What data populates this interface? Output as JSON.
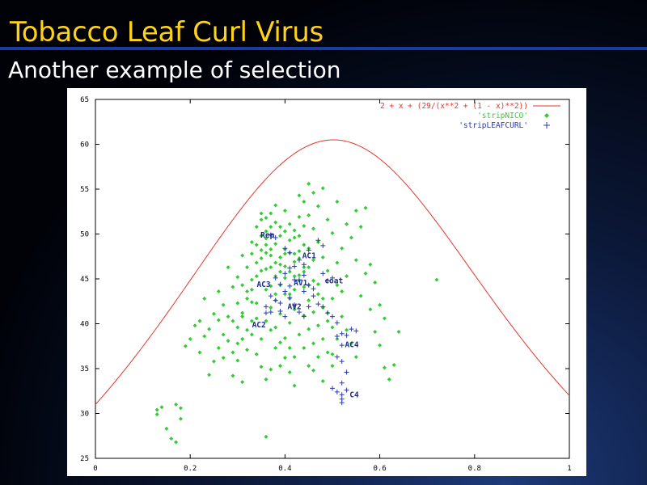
{
  "slide": {
    "title": "Tobacco Leaf Curl Virus",
    "subtitle": "Another example of selection"
  },
  "colors": {
    "title": "#ffd21a",
    "curve": "#e0382a",
    "nico": "#33cc33",
    "leafcurl": "#2a3aa8",
    "labels": "#1c2a8a"
  },
  "chart_data": {
    "type": "scatter",
    "xlim": [
      0,
      1
    ],
    "ylim": [
      25,
      65
    ],
    "xticks": [
      "0",
      "0.2",
      "0.4",
      "0.6",
      "0.8",
      "1"
    ],
    "yticks": [
      "25",
      "30",
      "35",
      "40",
      "45",
      "50",
      "55",
      "60",
      "65"
    ],
    "legend_position": "top-right",
    "grid": false,
    "curve": {
      "name": "2 + x + (29/(x**2 + (1 - x)**2))",
      "marker": "line"
    },
    "series": [
      {
        "name": "'stripNICO'",
        "marker": "diamond",
        "points": [
          [
            0.13,
            30.4
          ],
          [
            0.14,
            30.7
          ],
          [
            0.13,
            29.9
          ],
          [
            0.17,
            31.0
          ],
          [
            0.18,
            30.6
          ],
          [
            0.15,
            28.3
          ],
          [
            0.16,
            27.2
          ],
          [
            0.18,
            29.4
          ],
          [
            0.17,
            26.8
          ],
          [
            0.36,
            27.4
          ],
          [
            0.19,
            37.5
          ],
          [
            0.22,
            36.8
          ],
          [
            0.21,
            39.8
          ],
          [
            0.23,
            38.6
          ],
          [
            0.25,
            41.1
          ],
          [
            0.24,
            39.4
          ],
          [
            0.26,
            43.6
          ],
          [
            0.27,
            42.1
          ],
          [
            0.26,
            40.4
          ],
          [
            0.28,
            38.1
          ],
          [
            0.27,
            36.2
          ],
          [
            0.29,
            34.2
          ],
          [
            0.3,
            35.9
          ],
          [
            0.31,
            33.5
          ],
          [
            0.29,
            44.1
          ],
          [
            0.28,
            46.3
          ],
          [
            0.3,
            45.2
          ],
          [
            0.31,
            47.6
          ],
          [
            0.32,
            43.6
          ],
          [
            0.33,
            42.4
          ],
          [
            0.31,
            41.2
          ],
          [
            0.3,
            39.6
          ],
          [
            0.33,
            38.8
          ],
          [
            0.32,
            37.1
          ],
          [
            0.34,
            36.6
          ],
          [
            0.35,
            35.2
          ],
          [
            0.36,
            33.8
          ],
          [
            0.37,
            34.9
          ],
          [
            0.34,
            40.6
          ],
          [
            0.33,
            44.9
          ],
          [
            0.34,
            46.8
          ],
          [
            0.35,
            48.2
          ],
          [
            0.33,
            49.1
          ],
          [
            0.34,
            50.8
          ],
          [
            0.35,
            51.6
          ],
          [
            0.36,
            49.5
          ],
          [
            0.37,
            47.6
          ],
          [
            0.36,
            46.1
          ],
          [
            0.37,
            44.2
          ],
          [
            0.38,
            42.6
          ],
          [
            0.39,
            41.1
          ],
          [
            0.38,
            39.6
          ],
          [
            0.39,
            37.9
          ],
          [
            0.4,
            36.2
          ],
          [
            0.41,
            34.6
          ],
          [
            0.42,
            33.1
          ],
          [
            0.4,
            38.4
          ],
          [
            0.41,
            40.1
          ],
          [
            0.42,
            41.6
          ],
          [
            0.41,
            43.3
          ],
          [
            0.4,
            45.1
          ],
          [
            0.39,
            46.6
          ],
          [
            0.4,
            48.3
          ],
          [
            0.39,
            49.8
          ],
          [
            0.38,
            51.3
          ],
          [
            0.37,
            52.3
          ],
          [
            0.38,
            53.2
          ],
          [
            0.4,
            52.6
          ],
          [
            0.41,
            51.1
          ],
          [
            0.42,
            49.6
          ],
          [
            0.43,
            48.1
          ],
          [
            0.42,
            46.9
          ],
          [
            0.43,
            45.4
          ],
          [
            0.44,
            44.1
          ],
          [
            0.45,
            42.6
          ],
          [
            0.44,
            40.9
          ],
          [
            0.45,
            39.4
          ],
          [
            0.46,
            37.8
          ],
          [
            0.47,
            36.3
          ],
          [
            0.46,
            34.8
          ],
          [
            0.48,
            33.6
          ],
          [
            0.44,
            53.6
          ],
          [
            0.45,
            52.1
          ],
          [
            0.43,
            54.3
          ],
          [
            0.46,
            50.6
          ],
          [
            0.47,
            49.1
          ],
          [
            0.48,
            47.4
          ],
          [
            0.49,
            45.9
          ],
          [
            0.47,
            44.4
          ],
          [
            0.48,
            42.8
          ],
          [
            0.49,
            41.2
          ],
          [
            0.5,
            39.6
          ],
          [
            0.51,
            38.3
          ],
          [
            0.5,
            36.6
          ],
          [
            0.52,
            43.6
          ],
          [
            0.53,
            45.3
          ],
          [
            0.51,
            46.8
          ],
          [
            0.52,
            48.4
          ],
          [
            0.5,
            50.1
          ],
          [
            0.49,
            51.6
          ],
          [
            0.47,
            53.1
          ],
          [
            0.46,
            54.6
          ],
          [
            0.48,
            55.1
          ],
          [
            0.45,
            55.6
          ],
          [
            0.51,
            53.6
          ],
          [
            0.53,
            51.1
          ],
          [
            0.54,
            49.6
          ],
          [
            0.55,
            52.6
          ],
          [
            0.56,
            50.8
          ],
          [
            0.55,
            47.1
          ],
          [
            0.57,
            45.6
          ],
          [
            0.56,
            43.1
          ],
          [
            0.58,
            41.6
          ],
          [
            0.59,
            39.1
          ],
          [
            0.6,
            37.6
          ],
          [
            0.61,
            35.1
          ],
          [
            0.62,
            33.8
          ],
          [
            0.58,
            46.6
          ],
          [
            0.59,
            44.6
          ],
          [
            0.6,
            42.1
          ],
          [
            0.61,
            40.6
          ],
          [
            0.63,
            35.4
          ],
          [
            0.64,
            39.1
          ],
          [
            0.72,
            44.9
          ],
          [
            0.57,
            52.9
          ],
          [
            0.35,
            45.9
          ],
          [
            0.36,
            47.9
          ],
          [
            0.37,
            49.9
          ],
          [
            0.38,
            48.9
          ],
          [
            0.39,
            47.4
          ],
          [
            0.4,
            46.4
          ],
          [
            0.41,
            47.9
          ],
          [
            0.42,
            50.4
          ],
          [
            0.43,
            51.9
          ],
          [
            0.44,
            50.9
          ],
          [
            0.45,
            48.4
          ],
          [
            0.46,
            47.1
          ],
          [
            0.44,
            46.3
          ],
          [
            0.43,
            44.8
          ],
          [
            0.42,
            43.8
          ],
          [
            0.41,
            42.8
          ],
          [
            0.39,
            44.3
          ],
          [
            0.38,
            45.3
          ],
          [
            0.37,
            46.3
          ],
          [
            0.36,
            50.3
          ],
          [
            0.35,
            49.8
          ],
          [
            0.34,
            48.8
          ],
          [
            0.33,
            47.8
          ],
          [
            0.32,
            46.3
          ],
          [
            0.31,
            44.3
          ],
          [
            0.3,
            42.3
          ],
          [
            0.29,
            40.3
          ],
          [
            0.28,
            40.8
          ],
          [
            0.27,
            38.8
          ],
          [
            0.26,
            37.3
          ],
          [
            0.25,
            35.8
          ],
          [
            0.24,
            34.3
          ],
          [
            0.23,
            42.8
          ],
          [
            0.22,
            40.3
          ],
          [
            0.2,
            38.3
          ],
          [
            0.35,
            38.3
          ],
          [
            0.36,
            40.3
          ],
          [
            0.37,
            41.8
          ],
          [
            0.38,
            43.3
          ],
          [
            0.39,
            45.8
          ],
          [
            0.4,
            47.8
          ],
          [
            0.41,
            49.3
          ],
          [
            0.42,
            45.3
          ],
          [
            0.43,
            47.3
          ],
          [
            0.44,
            48.8
          ],
          [
            0.45,
            46.3
          ],
          [
            0.46,
            44.8
          ],
          [
            0.47,
            43.3
          ],
          [
            0.48,
            41.8
          ],
          [
            0.49,
            40.3
          ],
          [
            0.5,
            42.8
          ],
          [
            0.51,
            44.3
          ],
          [
            0.52,
            40.8
          ],
          [
            0.53,
            39.3
          ],
          [
            0.54,
            37.8
          ],
          [
            0.55,
            36.3
          ],
          [
            0.36,
            43.8
          ],
          [
            0.37,
            39.3
          ],
          [
            0.38,
            37.3
          ],
          [
            0.39,
            35.3
          ],
          [
            0.4,
            43.3
          ],
          [
            0.41,
            37.3
          ],
          [
            0.42,
            36.3
          ],
          [
            0.43,
            38.8
          ],
          [
            0.44,
            37.3
          ],
          [
            0.45,
            35.3
          ],
          [
            0.46,
            41.3
          ],
          [
            0.47,
            39.8
          ],
          [
            0.48,
            38.3
          ],
          [
            0.49,
            36.8
          ],
          [
            0.5,
            35.3
          ],
          [
            0.34,
            42.3
          ],
          [
            0.33,
            40.3
          ],
          [
            0.32,
            39.3
          ],
          [
            0.31,
            38.3
          ],
          [
            0.35,
            52.3
          ],
          [
            0.36,
            51.8
          ],
          [
            0.37,
            50.8
          ],
          [
            0.39,
            50.8
          ],
          [
            0.4,
            50.3
          ],
          [
            0.41,
            45.8
          ],
          [
            0.42,
            47.8
          ],
          [
            0.43,
            49.8
          ],
          [
            0.44,
            45.8
          ],
          [
            0.45,
            44.3
          ],
          [
            0.38,
            46.8
          ],
          [
            0.37,
            48.3
          ],
          [
            0.36,
            48.8
          ],
          [
            0.35,
            47.3
          ],
          [
            0.34,
            45.3
          ],
          [
            0.33,
            43.8
          ],
          [
            0.32,
            42.8
          ],
          [
            0.31,
            40.8
          ],
          [
            0.3,
            37.8
          ],
          [
            0.29,
            36.8
          ]
        ]
      },
      {
        "name": "'stripLEAFCURL'",
        "marker": "plus",
        "points": [
          [
            0.37,
            49.9
          ],
          [
            0.38,
            49.6
          ],
          [
            0.4,
            48.4
          ],
          [
            0.41,
            47.9
          ],
          [
            0.43,
            47.1
          ],
          [
            0.42,
            46.4
          ],
          [
            0.44,
            46.6
          ],
          [
            0.45,
            48.2
          ],
          [
            0.47,
            49.3
          ],
          [
            0.48,
            48.7
          ],
          [
            0.44,
            45.4
          ],
          [
            0.43,
            44.9
          ],
          [
            0.45,
            44.3
          ],
          [
            0.46,
            43.9
          ],
          [
            0.48,
            45.6
          ],
          [
            0.49,
            44.8
          ],
          [
            0.5,
            45.1
          ],
          [
            0.38,
            45.1
          ],
          [
            0.39,
            44.4
          ],
          [
            0.4,
            43.6
          ],
          [
            0.41,
            42.9
          ],
          [
            0.39,
            42.3
          ],
          [
            0.38,
            42.6
          ],
          [
            0.37,
            43.1
          ],
          [
            0.36,
            41.9
          ],
          [
            0.37,
            41.3
          ],
          [
            0.39,
            41.4
          ],
          [
            0.4,
            40.8
          ],
          [
            0.36,
            41.2
          ],
          [
            0.42,
            42.1
          ],
          [
            0.43,
            41.3
          ],
          [
            0.44,
            40.8
          ],
          [
            0.45,
            41.9
          ],
          [
            0.46,
            43.1
          ],
          [
            0.47,
            42.2
          ],
          [
            0.48,
            41.9
          ],
          [
            0.49,
            41.2
          ],
          [
            0.5,
            40.8
          ],
          [
            0.51,
            40.1
          ],
          [
            0.51,
            38.6
          ],
          [
            0.52,
            38.9
          ],
          [
            0.53,
            38.7
          ],
          [
            0.54,
            39.4
          ],
          [
            0.55,
            39.2
          ],
          [
            0.52,
            37.6
          ],
          [
            0.51,
            36.3
          ],
          [
            0.52,
            35.8
          ],
          [
            0.53,
            34.6
          ],
          [
            0.52,
            33.4
          ],
          [
            0.5,
            32.8
          ],
          [
            0.51,
            32.4
          ],
          [
            0.52,
            32.1
          ],
          [
            0.52,
            31.6
          ],
          [
            0.53,
            32.6
          ],
          [
            0.52,
            31.2
          ],
          [
            0.41,
            46.2
          ],
          [
            0.4,
            45.6
          ],
          [
            0.42,
            44.9
          ],
          [
            0.41,
            44.2
          ],
          [
            0.44,
            43.6
          ]
        ]
      }
    ],
    "annotations": [
      {
        "text": "Rep",
        "x": 0.363,
        "y": 49.6
      },
      {
        "text": "AC1",
        "x": 0.451,
        "y": 47.3
      },
      {
        "text": "coat",
        "x": 0.503,
        "y": 44.5
      },
      {
        "text": "AC3",
        "x": 0.355,
        "y": 44.1
      },
      {
        "text": "AV1",
        "x": 0.433,
        "y": 44.3
      },
      {
        "text": "AV2",
        "x": 0.42,
        "y": 41.6
      },
      {
        "text": "AC2",
        "x": 0.345,
        "y": 39.6
      },
      {
        "text": "AC4",
        "x": 0.541,
        "y": 37.4
      },
      {
        "text": "C4",
        "x": 0.546,
        "y": 31.8
      }
    ]
  }
}
